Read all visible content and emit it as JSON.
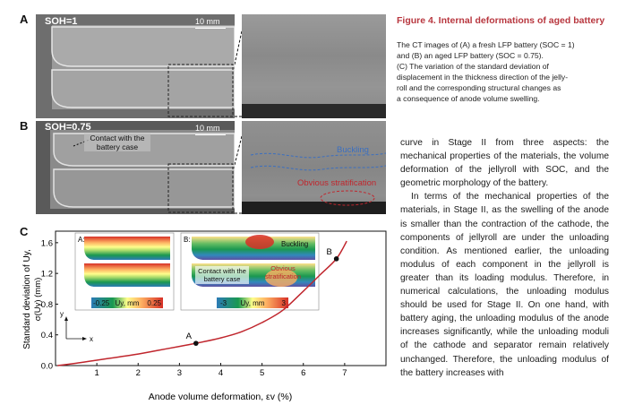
{
  "figure": {
    "panel_a": {
      "letter": "A",
      "label": "SOH=1",
      "scale": "10 mm"
    },
    "panel_b": {
      "letter": "B",
      "label": "SOH=0.75",
      "scale": "10 mm",
      "annot_contact": "Contact with the battery case",
      "annot_buckling": "Buckling",
      "annot_strat": "Obvious stratification"
    },
    "panel_c": {
      "letter": "C"
    }
  },
  "caption": {
    "title": "Figure 4. Internal deformations of aged battery",
    "lines": [
      "The CT images of (A) a fresh LFP battery (SOC = 1)",
      "and (B) an aged LFP battery (SOC = 0.75).",
      "(C) The variation of the standard deviation of",
      "displacement in the thickness direction of the jelly-",
      "roll and the corresponding structural changes as",
      "a consequence of anode volume swelling."
    ]
  },
  "body": {
    "p1": "curve in Stage II from three aspects: the mechanical properties of the materials, the volume deformation of the jellyroll with SOC, and the geometric morphology of the battery.",
    "p2": "In terms of the mechanical properties of the materials, in Stage II, as the swelling of the anode is smaller than the contraction of the cathode, the components of jellyroll are under the unloading condition. As mentioned earlier, the unloading modulus of each component in the jellyroll is greater than its loading modulus. Therefore, in numerical calculations, the unloading modulus should be used for Stage II. On one hand, with battery aging, the unloading modulus of the anode increases significantly, while the unloading moduli of the cathode and separator remain relatively unchanged. Therefore, the unloading modulus of the battery increases with"
  },
  "chart_data": {
    "type": "line",
    "xlabel": "Anode volume deformation, εv (%)",
    "ylabel_outer": "Standard deviation of Uy,",
    "ylabel_inner": "σ(Uy) (mm)",
    "xlim": [
      0,
      8
    ],
    "ylim": [
      0,
      1.75
    ],
    "xticks": [
      1,
      2,
      3,
      4,
      5,
      6,
      7
    ],
    "yticks": [
      0.0,
      0.4,
      0.8,
      1.2,
      1.6
    ],
    "xtick_labels": [
      "1",
      "2",
      "3",
      "4",
      "5",
      "6",
      "7"
    ],
    "ytick_labels": [
      "0.0",
      "0.4",
      "0.8",
      "1.2",
      "1.6"
    ],
    "series": [
      {
        "color": "#c0262d",
        "x": [
          0.05,
          0.5,
          1.0,
          1.5,
          2.0,
          2.5,
          3.0,
          3.4,
          4.0,
          4.5,
          5.0,
          5.5,
          6.0,
          6.4,
          6.8,
          7.05
        ],
        "y": [
          0.0,
          0.03,
          0.07,
          0.11,
          0.15,
          0.2,
          0.25,
          0.29,
          0.36,
          0.44,
          0.56,
          0.72,
          0.97,
          1.18,
          1.39,
          1.62
        ]
      }
    ],
    "points": [
      {
        "label": "A",
        "x": 3.4,
        "y": 0.29
      },
      {
        "label": "B",
        "x": 6.8,
        "y": 1.39
      }
    ],
    "insets": [
      {
        "label": "A:",
        "legend_min": "-0.25",
        "legend_max": "0.25",
        "legend_unit": "Uy, mm"
      },
      {
        "label": "B:",
        "legend_min": "-3",
        "legend_max": "3",
        "legend_unit": "Uy, mm",
        "annot_buckling": "Buckling",
        "annot_contact": "Contact with the battery case",
        "annot_strat": "Obvious stratification"
      }
    ],
    "axis_icon": {
      "x": "x",
      "y": "y"
    },
    "grid": false
  }
}
